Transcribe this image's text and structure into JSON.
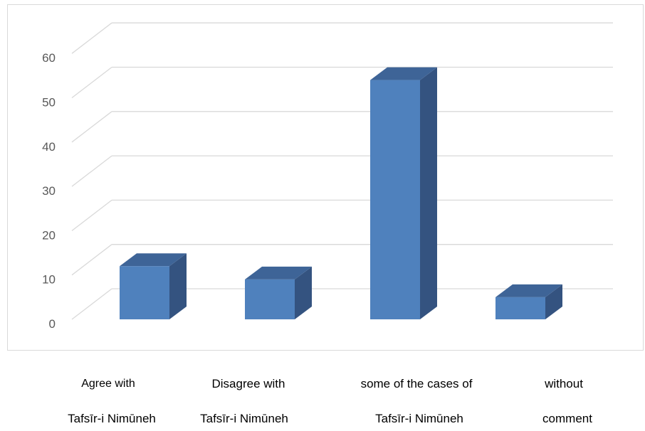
{
  "chart_data": {
    "type": "bar",
    "style": "3d-column",
    "title": "",
    "xlabel": "",
    "ylabel": "",
    "ylim": [
      0,
      65
    ],
    "yticks": [
      "0",
      "10",
      "20",
      "30",
      "40",
      "50",
      "60"
    ],
    "categories": [
      {
        "line1": "Agree with",
        "line2": "Tafsīr-i Nimūneh"
      },
      {
        "line1": "Disagree with",
        "line2": "Tafsīr-i Nimūneh"
      },
      {
        "line1": "some of the cases of",
        "line2": "Tafsīr-i Nimūneh"
      },
      {
        "line1": "without",
        "line2": "comment"
      }
    ],
    "values": [
      12,
      9,
      54,
      5
    ],
    "grid": true,
    "legend": "none",
    "colors": {
      "front": "#4f81bd",
      "top": "#3e6497",
      "side": "#345380",
      "grid": "#d9d9d9",
      "axis_text": "#595959"
    }
  }
}
